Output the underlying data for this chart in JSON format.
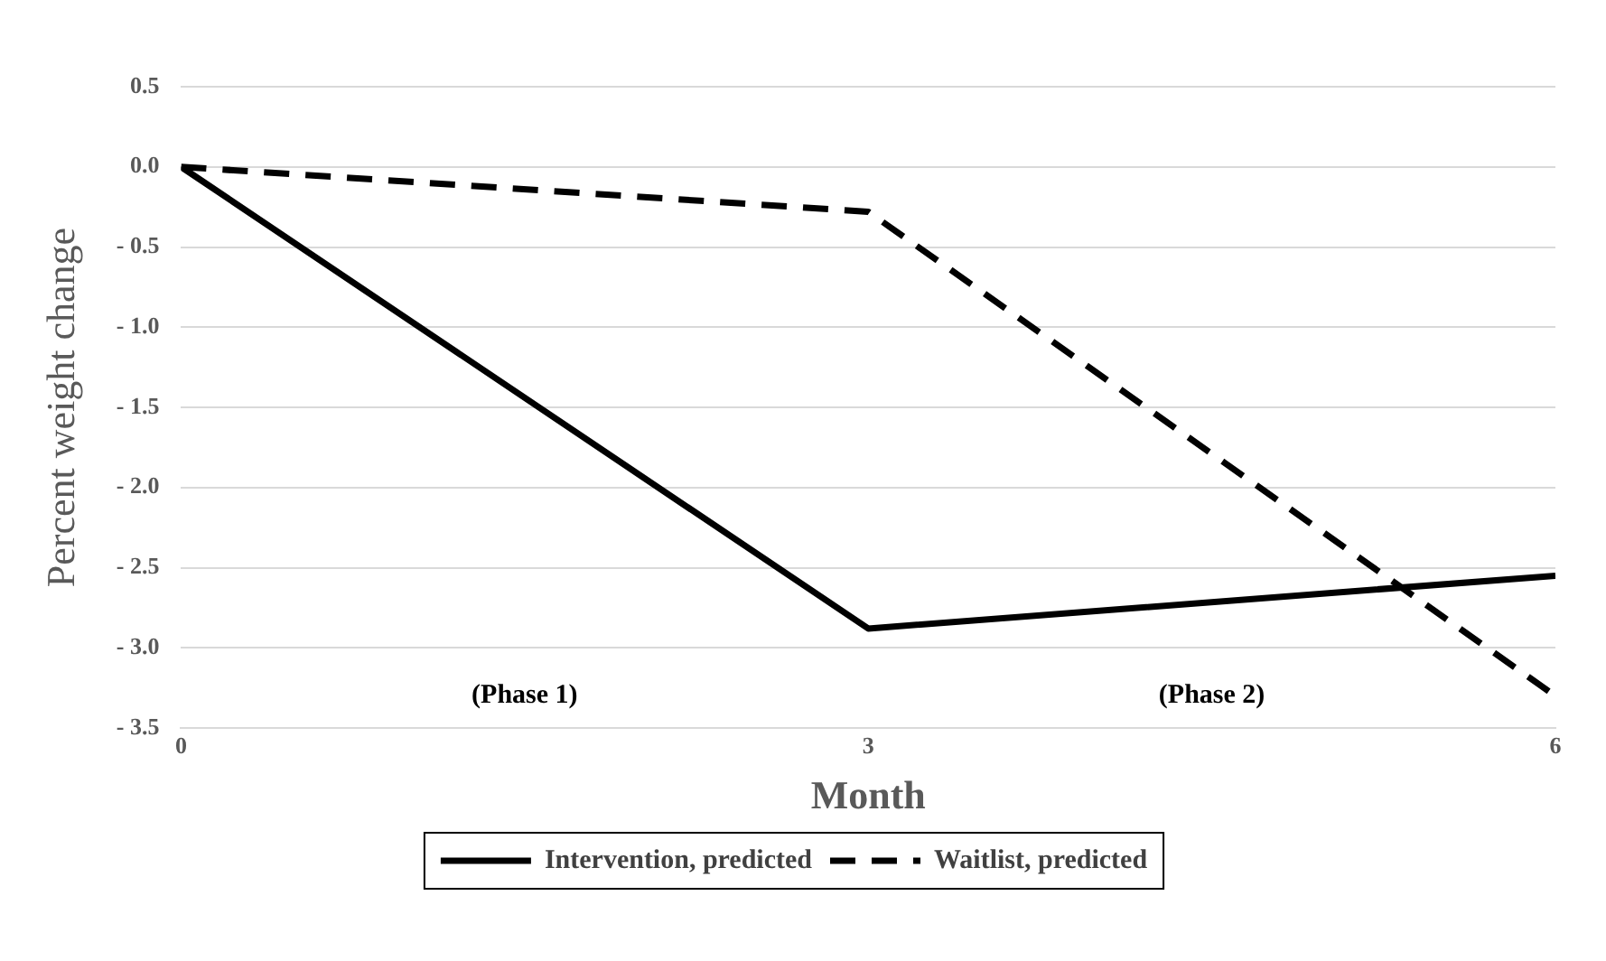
{
  "chart_data": {
    "type": "line",
    "xlabel": "Month",
    "ylabel": "Percent weight change",
    "x": [
      0,
      3,
      6
    ],
    "series": [
      {
        "name": "Intervention, predicted",
        "color": "#000000",
        "values": [
          0,
          -2.88,
          -2.55
        ],
        "line_style": "solid"
      },
      {
        "name": "Waitlist, predicted",
        "color": "#000000",
        "values": [
          0,
          -0.28,
          -3.3
        ],
        "line_style": "dashed"
      }
    ],
    "xlim": [
      0,
      6
    ],
    "xticks": [
      0,
      3,
      6
    ],
    "ylim": [
      -3.5,
      0.5
    ],
    "yticks": [
      {
        "value": 0.5,
        "label": "0.5"
      },
      {
        "value": 0,
        "label": "0.0"
      },
      {
        "value": -0.5,
        "label": "- 0.5"
      },
      {
        "value": -1,
        "label": "- 1.0"
      },
      {
        "value": -1.5,
        "label": "- 1.5"
      },
      {
        "value": -2,
        "label": "- 2.0"
      },
      {
        "value": -2.5,
        "label": "- 2.5"
      },
      {
        "value": -3,
        "label": "- 3.0"
      },
      {
        "value": -3.5,
        "label": "- 3.5"
      }
    ],
    "grid": "y",
    "legend": "bottom",
    "marker": "none",
    "annotations": [
      "(Phase 1)",
      "(Phase 2)"
    ]
  }
}
